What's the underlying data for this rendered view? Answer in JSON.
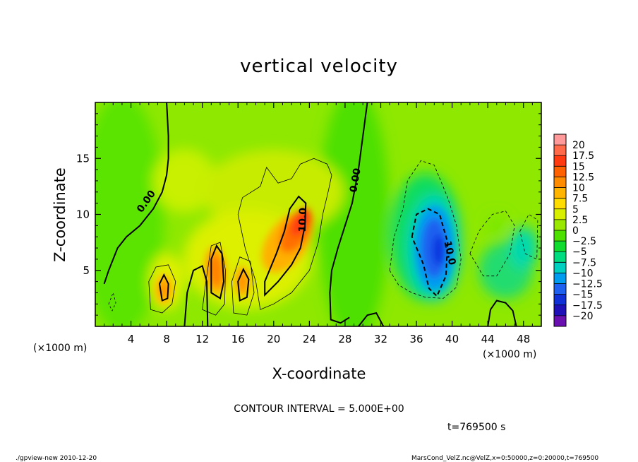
{
  "chart_data": {
    "type": "heatmap",
    "title": "vertical velocity",
    "xlabel": "X-coordinate",
    "ylabel": "Z-coordinate",
    "x_unit": "(×1000 m)",
    "x_unit_right": "(×1000 m)",
    "xlim": [
      0,
      50
    ],
    "ylim": [
      0,
      20
    ],
    "x_ticks": [
      4,
      8,
      12,
      16,
      20,
      24,
      28,
      32,
      36,
      40,
      44,
      48
    ],
    "y_ticks": [
      5,
      10,
      15
    ],
    "contour_interval": "CONTOUR INTERVAL = 5.000E+00",
    "contour_labels": [
      "0.00",
      "0.00",
      "10.0",
      "10.0"
    ],
    "time_label": "t=769500 s",
    "colorbar": {
      "levels": [
        20,
        17.5,
        15,
        12.5,
        10,
        7.5,
        5,
        2.5,
        0,
        -2.5,
        -5,
        -7.5,
        -10,
        -12.5,
        -15,
        -17.5,
        -20
      ],
      "colors": [
        "#ff9a9a",
        "#ff6a4a",
        "#ff3a10",
        "#ff6000",
        "#ff8c00",
        "#ffb400",
        "#ffdc00",
        "#d8f000",
        "#9ae800",
        "#4ee000",
        "#10dc30",
        "#00dc80",
        "#00d0c0",
        "#009cf0",
        "#1e60f0",
        "#1030d8",
        "#2010b8",
        "#6a10b0"
      ]
    },
    "features": [
      {
        "kind": "updraft",
        "x": 22.5,
        "z": 8.5,
        "peak": 15
      },
      {
        "kind": "updraft",
        "x": 13.5,
        "z": 5.0,
        "peak": 12
      },
      {
        "kind": "updraft",
        "x": 16.5,
        "z": 4.0,
        "peak": 11
      },
      {
        "kind": "updraft",
        "x": 7.5,
        "z": 3.5,
        "peak": 11
      },
      {
        "kind": "downdraft",
        "x": 38.0,
        "z": 7.0,
        "peak": -12
      }
    ]
  },
  "footer": {
    "left": "./gpview-new   2010-12-20",
    "right": "MarsCond_VelZ.nc@VelZ,x=0:50000,z=0:20000,t=769500"
  }
}
